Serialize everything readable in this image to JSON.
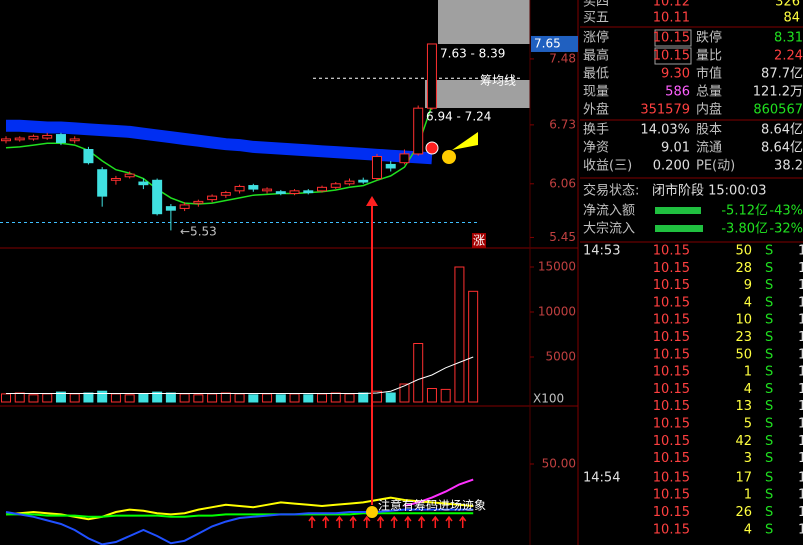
{
  "chart_data": [
    {
      "type": "candlestick",
      "ylim": [
        5.33,
        8.15
      ],
      "yticks": [
        7.48,
        6.73,
        6.06,
        5.45
      ],
      "last_price": {
        "value": 7.65,
        "label": "7.65"
      },
      "open": [
        6.55,
        6.56,
        6.57,
        6.58,
        6.62,
        6.55,
        6.45,
        6.22,
        6.1,
        6.14,
        6.08,
        6.1,
        5.8,
        5.78,
        5.84,
        5.88,
        5.93,
        5.98,
        6.04,
        5.98,
        5.97,
        5.95,
        5.98,
        5.98,
        6.02,
        6.06,
        6.1,
        6.12,
        6.28,
        6.3,
        6.4,
        6.92
      ],
      "high": [
        6.6,
        6.6,
        6.62,
        6.64,
        6.64,
        6.6,
        6.48,
        6.25,
        6.15,
        6.2,
        6.12,
        6.12,
        5.83,
        5.85,
        5.88,
        5.94,
        5.98,
        6.05,
        6.06,
        6.02,
        5.99,
        6.0,
        6.0,
        6.04,
        6.08,
        6.12,
        6.13,
        6.4,
        6.32,
        6.45,
        6.95,
        7.65
      ],
      "low": [
        6.52,
        6.54,
        6.55,
        6.56,
        6.5,
        6.52,
        6.28,
        5.8,
        6.05,
        6.12,
        6.0,
        5.7,
        5.53,
        5.75,
        5.8,
        5.85,
        5.9,
        5.95,
        5.97,
        5.95,
        5.93,
        5.93,
        5.94,
        5.96,
        6.0,
        6.04,
        6.06,
        6.1,
        6.2,
        6.28,
        6.38,
        6.9
      ],
      "close": [
        6.57,
        6.58,
        6.6,
        6.61,
        6.53,
        6.57,
        6.3,
        5.92,
        6.12,
        6.17,
        6.05,
        5.72,
        5.76,
        5.82,
        5.86,
        5.92,
        5.96,
        6.03,
        6.0,
        6.0,
        5.95,
        5.98,
        5.96,
        6.02,
        6.06,
        6.09,
        6.08,
        6.37,
        6.24,
        6.4,
        6.92,
        7.65
      ],
      "ma": [
        6.47,
        6.48,
        6.5,
        6.52,
        6.52,
        6.5,
        6.44,
        6.32,
        6.22,
        6.18,
        6.12,
        6.0,
        5.9,
        5.84,
        5.83,
        5.84,
        5.87,
        5.9,
        5.93,
        5.94,
        5.95,
        5.95,
        5.96,
        5.97,
        5.99,
        6.02,
        6.04,
        6.1,
        6.15,
        6.25,
        6.5,
        6.95
      ],
      "cost_band": [
        6.72,
        6.72,
        6.71,
        6.7,
        6.7,
        6.69,
        6.68,
        6.67,
        6.66,
        6.65,
        6.63,
        6.61,
        6.59,
        6.57,
        6.55,
        6.53,
        6.51,
        6.5,
        6.48,
        6.47,
        6.46,
        6.45,
        6.44,
        6.43,
        6.42,
        6.41,
        6.4,
        6.39,
        6.38,
        6.37,
        6.36,
        6.35
      ],
      "reference_lines": [
        7.26,
        5.62
      ],
      "annotations": [
        "7.63 - 8.39",
        "筹均线",
        "6.94 - 7.24",
        "←5.53",
        "涨"
      ]
    },
    {
      "type": "bar",
      "ylim": [
        0,
        16890
      ],
      "yticks": [
        15000,
        10000,
        5000
      ],
      "unit": "X100",
      "values": [
        900,
        1000,
        800,
        900,
        1100,
        900,
        1000,
        1200,
        900,
        800,
        900,
        1100,
        1000,
        900,
        800,
        900,
        1000,
        900,
        800,
        900,
        800,
        900,
        800,
        900,
        1000,
        900,
        1000,
        1200,
        1000,
        2000,
        6500,
        1500,
        1400,
        15000,
        12300
      ],
      "ma_values": [
        950,
        950,
        950,
        950,
        950,
        950,
        950,
        950,
        950,
        950,
        950,
        950,
        950,
        950,
        950,
        950,
        950,
        950,
        950,
        950,
        950,
        950,
        950,
        950,
        950,
        950,
        950,
        1000,
        1200,
        1800,
        2500,
        3000,
        3800,
        4400,
        5000
      ]
    },
    {
      "type": "line",
      "ylim": [
        -17.5,
        95
      ],
      "yticks": [
        {
          "value": 50,
          "label": "50.00"
        }
      ],
      "annotation": "注意有筹码进场迹象",
      "series": [
        {
          "name": "yellow",
          "color": "#ffff00",
          "values": [
            8,
            9,
            10,
            9,
            8,
            6,
            4,
            6,
            10,
            12,
            11,
            9,
            8,
            9,
            12,
            14,
            16,
            15,
            14,
            16,
            18,
            17,
            16,
            15,
            16,
            17,
            18,
            20,
            22,
            20,
            19,
            18,
            17,
            16,
            15
          ]
        },
        {
          "name": "green",
          "color": "#00ff00",
          "values": [
            8,
            8,
            8,
            7,
            7,
            7,
            6,
            6,
            7,
            7,
            7,
            7,
            6,
            6,
            7,
            7,
            8,
            8,
            8,
            8,
            8,
            8,
            8,
            8,
            8,
            8,
            9,
            9,
            9,
            9,
            9,
            9,
            9,
            9,
            9
          ]
        },
        {
          "name": "blue",
          "color": "#2050ff",
          "values": [
            10,
            8,
            6,
            3,
            0,
            -5,
            -12,
            -17,
            -15,
            -10,
            -5,
            -10,
            -16,
            -14,
            -8,
            -2,
            2,
            5,
            6,
            7,
            8,
            8,
            9,
            9,
            9,
            10,
            10,
            10,
            11,
            12,
            12,
            12,
            12,
            12,
            12
          ]
        },
        {
          "name": "magenta",
          "color": "#ff30ff",
          "values": [
            null,
            null,
            null,
            null,
            null,
            null,
            null,
            null,
            null,
            null,
            null,
            null,
            null,
            null,
            null,
            null,
            null,
            null,
            null,
            null,
            null,
            null,
            null,
            null,
            null,
            null,
            null,
            null,
            null,
            15,
            18,
            22,
            27,
            33,
            37
          ]
        }
      ]
    }
  ],
  "panel": {
    "quote_top": [
      {
        "label": "买四",
        "price": "10.12",
        "volume": "326"
      },
      {
        "label": "买五",
        "price": "10.11",
        "volume": "84"
      }
    ],
    "stats": [
      [
        {
          "label": "涨停",
          "value": "10.15"
        },
        {
          "label": "跌停",
          "value": "8.31"
        }
      ],
      [
        {
          "label": "最高",
          "value": "10.15"
        },
        {
          "label": "量比",
          "value": "2.24"
        }
      ],
      [
        {
          "label": "最低",
          "value": "9.30"
        },
        {
          "label": "市值",
          "value": "87.7亿"
        }
      ],
      [
        {
          "label": "现量",
          "value": "586"
        },
        {
          "label": "总量",
          "value": "121.2万"
        }
      ],
      [
        {
          "label": "外盘",
          "value": "351579"
        },
        {
          "label": "内盘",
          "value": "860567"
        }
      ],
      [
        {
          "label": "换手",
          "value": "14.03%"
        },
        {
          "label": "股本",
          "value": "8.64亿"
        }
      ],
      [
        {
          "label": "净资",
          "value": "9.01"
        },
        {
          "label": "流通",
          "value": "8.64亿"
        }
      ],
      [
        {
          "label": "收益(三)",
          "value": "0.200"
        },
        {
          "label": "PE(动)",
          "value": "38.2"
        }
      ]
    ],
    "status": {
      "label": "交易状态:",
      "value": "闭市阶段 15:00:03"
    },
    "flows": [
      {
        "label": "净流入额",
        "amount": "-5.12亿",
        "percent": "-43%"
      },
      {
        "label": "大宗流入",
        "amount": "-3.80亿",
        "percent": "-32%"
      }
    ],
    "trades": [
      {
        "time": "14:53",
        "price": "10.15",
        "volume": "50",
        "side": "S",
        "count": "1"
      },
      {
        "price": "10.15",
        "volume": "28",
        "side": "S",
        "count": "1"
      },
      {
        "price": "10.15",
        "volume": "9",
        "side": "S",
        "count": "1"
      },
      {
        "price": "10.15",
        "volume": "4",
        "side": "S",
        "count": "1"
      },
      {
        "price": "10.15",
        "volume": "10",
        "side": "S",
        "count": "1"
      },
      {
        "price": "10.15",
        "volume": "23",
        "side": "S",
        "count": "1"
      },
      {
        "price": "10.15",
        "volume": "50",
        "side": "S",
        "count": "1"
      },
      {
        "price": "10.15",
        "volume": "1",
        "side": "S",
        "count": "1"
      },
      {
        "price": "10.15",
        "volume": "4",
        "side": "S",
        "count": "1"
      },
      {
        "price": "10.15",
        "volume": "13",
        "side": "S",
        "count": "1"
      },
      {
        "price": "10.15",
        "volume": "5",
        "side": "S",
        "count": "1"
      },
      {
        "price": "10.15",
        "volume": "42",
        "side": "S",
        "count": "1"
      },
      {
        "price": "10.15",
        "volume": "3",
        "side": "S",
        "count": "1"
      },
      {
        "time": "14:54",
        "price": "10.15",
        "volume": "17",
        "side": "S",
        "count": "1"
      },
      {
        "price": "10.15",
        "volume": "1",
        "side": "S",
        "count": "1"
      },
      {
        "price": "10.15",
        "volume": "26",
        "side": "S",
        "count": "1"
      },
      {
        "price": "10.15",
        "volume": "4",
        "side": "S",
        "count": "1"
      }
    ]
  }
}
